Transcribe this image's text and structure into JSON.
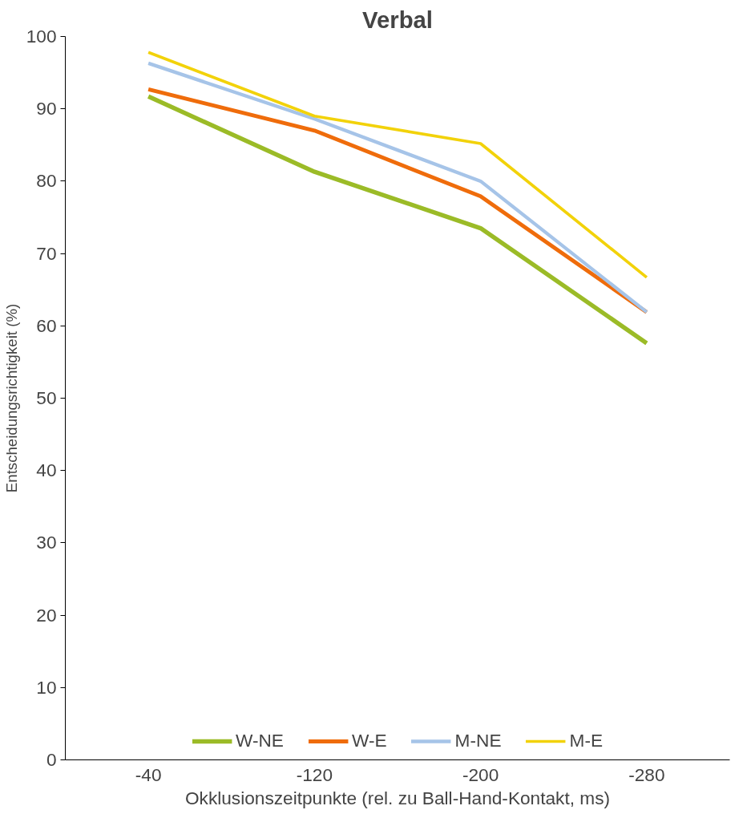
{
  "chart_data": {
    "type": "line",
    "title": "Verbal",
    "xlabel": "Okklusionszeitpunkte (rel. zu Ball-Hand-Kontakt, ms)",
    "ylabel": "Entscheidungsrichtigkeit (%)",
    "categories": [
      "-40",
      "-120",
      "-200",
      "-280"
    ],
    "series": [
      {
        "name": "W-NE",
        "color": "#9bbb27",
        "values": [
          91.7,
          81.3,
          73.5,
          57.6
        ]
      },
      {
        "name": "W-E",
        "color": "#ef6c0b",
        "values": [
          92.7,
          87.0,
          77.9,
          61.9
        ]
      },
      {
        "name": "M-NE",
        "color": "#a6c4e8",
        "values": [
          96.3,
          88.6,
          80.0,
          61.9
        ]
      },
      {
        "name": "M-E",
        "color": "#f2d20a",
        "values": [
          97.8,
          89.0,
          85.2,
          66.7
        ]
      }
    ],
    "ylim": [
      0,
      100
    ],
    "yticks": [
      0,
      10,
      20,
      30,
      40,
      50,
      60,
      70,
      80,
      90,
      100
    ],
    "grid": false,
    "legend": "bottom",
    "marker": "none",
    "line_style": "solid"
  }
}
